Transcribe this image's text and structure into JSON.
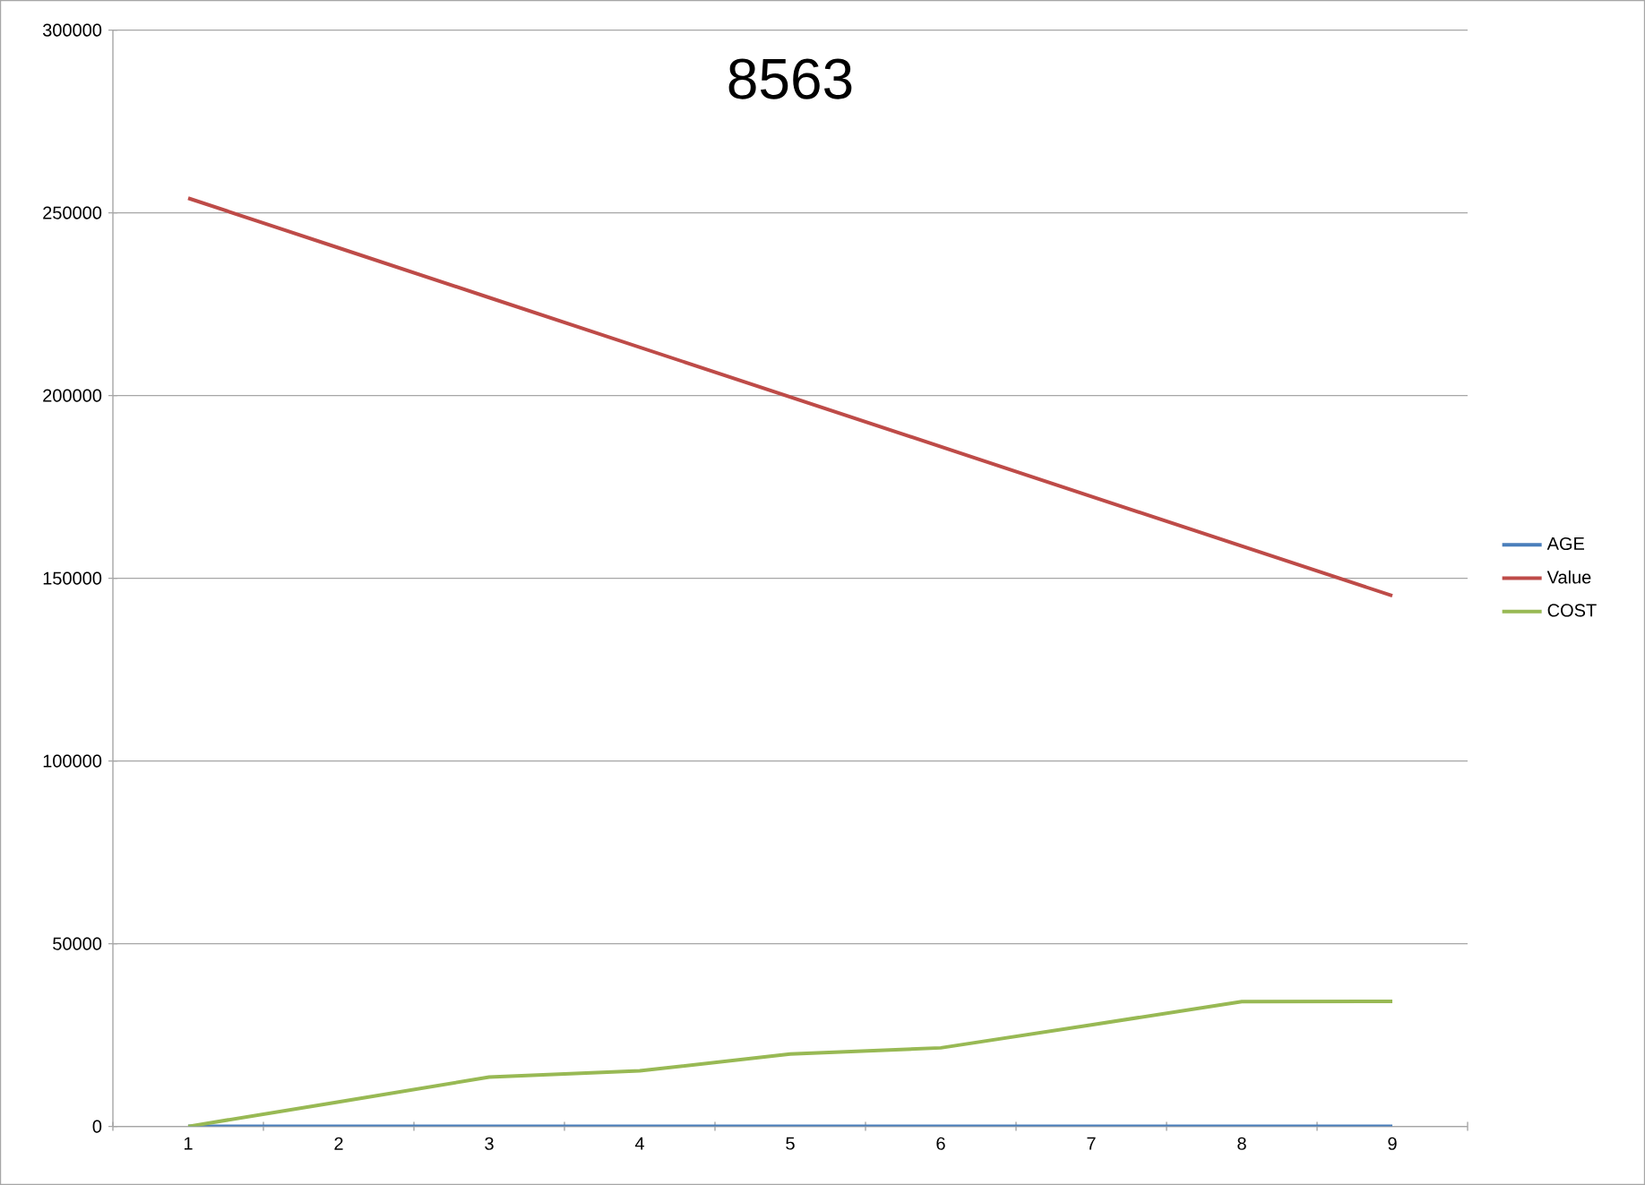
{
  "chart_data": {
    "type": "line",
    "title": "8563",
    "categories": [
      "1",
      "2",
      "3",
      "4",
      "5",
      "6",
      "7",
      "8",
      "9"
    ],
    "series": [
      {
        "name": "AGE",
        "color": "#4a7ebb",
        "values": [
          0,
          0,
          0,
          0,
          0,
          0,
          0,
          0,
          0
        ]
      },
      {
        "name": "Value",
        "color": "#be4b48",
        "values": [
          254000,
          240400,
          226800,
          213200,
          199600,
          186000,
          172400,
          158800,
          145200
        ]
      },
      {
        "name": "COST",
        "color": "#98b954",
        "values": [
          0,
          6700,
          13500,
          15200,
          19800,
          21500,
          27800,
          34150,
          34200
        ]
      }
    ],
    "ylim": [
      0,
      300000
    ],
    "yticks": [
      0,
      50000,
      100000,
      150000,
      200000,
      250000,
      300000
    ],
    "grid": "y",
    "legend": "right",
    "marker": "none",
    "line_style": "solid"
  }
}
